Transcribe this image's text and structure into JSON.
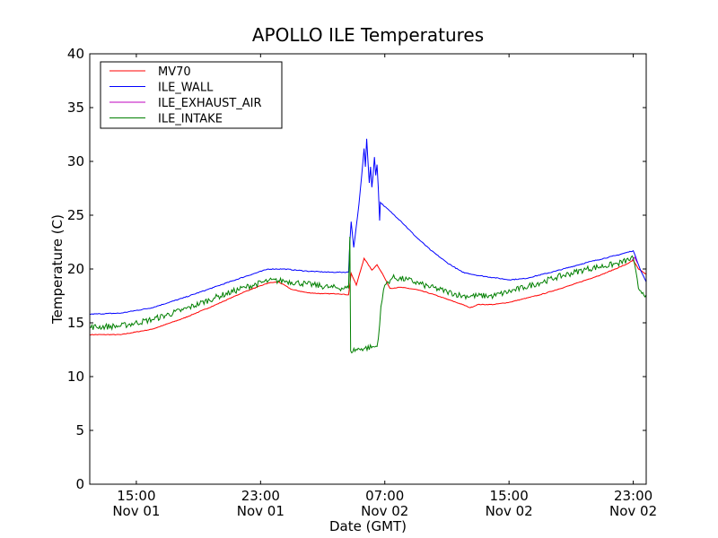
{
  "chart_data": {
    "type": "line",
    "title": "APOLLO ILE Temperatures",
    "xlabel": "Date (GMT)",
    "ylabel": "Temperature (C)",
    "x_unit": "date-time GMT",
    "xlim": [
      "2013-11-01T12:00",
      "2013-11-02T23:50"
    ],
    "ylim": [
      0,
      40
    ],
    "y_ticks": [
      0,
      5,
      10,
      15,
      20,
      25,
      30,
      35,
      40
    ],
    "x_ticks": [
      {
        "x": "2013-11-01T15:00",
        "line1": "15:00",
        "line2": "Nov 01"
      },
      {
        "x": "2013-11-01T23:00",
        "line1": "23:00",
        "line2": "Nov 01"
      },
      {
        "x": "2013-11-02T07:00",
        "line1": "07:00",
        "line2": "Nov 02"
      },
      {
        "x": "2013-11-02T15:00",
        "line1": "15:00",
        "line2": "Nov 02"
      },
      {
        "x": "2013-11-02T23:00",
        "line1": "23:00",
        "line2": "Nov 02"
      }
    ],
    "legend_position": "upper-left",
    "grid": false,
    "series": [
      {
        "name": "MV70",
        "color": "#ff0000",
        "noise": 0.03,
        "points": [
          [
            "2013-11-01T12:00",
            13.9
          ],
          [
            "2013-11-01T14:00",
            13.9
          ],
          [
            "2013-11-01T16:00",
            14.4
          ],
          [
            "2013-11-01T18:00",
            15.4
          ],
          [
            "2013-11-01T20:00",
            16.6
          ],
          [
            "2013-11-01T22:00",
            17.9
          ],
          [
            "2013-11-01T23:30",
            18.7
          ],
          [
            "2013-11-02T00:10",
            18.8
          ],
          [
            "2013-11-02T01:00",
            18.1
          ],
          [
            "2013-11-02T02:00",
            17.8
          ],
          [
            "2013-11-02T03:00",
            17.7
          ],
          [
            "2013-11-02T04:00",
            17.7
          ],
          [
            "2013-11-02T04:40",
            17.6
          ],
          [
            "2013-11-02T04:50",
            19.6
          ],
          [
            "2013-11-02T05:10",
            18.5
          ],
          [
            "2013-11-02T05:40",
            21.0
          ],
          [
            "2013-11-02T06:10",
            19.9
          ],
          [
            "2013-11-02T06:30",
            20.4
          ],
          [
            "2013-11-02T06:50",
            19.6
          ],
          [
            "2013-11-02T07:20",
            18.2
          ],
          [
            "2013-11-02T08:00",
            18.3
          ],
          [
            "2013-11-02T09:00",
            18.1
          ],
          [
            "2013-11-02T10:00",
            17.7
          ],
          [
            "2013-11-02T11:00",
            17.2
          ],
          [
            "2013-11-02T12:00",
            16.7
          ],
          [
            "2013-11-02T12:30",
            16.4
          ],
          [
            "2013-11-02T13:00",
            16.7
          ],
          [
            "2013-11-02T14:00",
            16.7
          ],
          [
            "2013-11-02T15:00",
            16.9
          ],
          [
            "2013-11-02T17:00",
            17.6
          ],
          [
            "2013-11-02T19:00",
            18.5
          ],
          [
            "2013-11-02T21:00",
            19.5
          ],
          [
            "2013-11-02T22:30",
            20.4
          ],
          [
            "2013-11-02T23:00",
            20.8
          ],
          [
            "2013-11-02T23:20",
            20.0
          ],
          [
            "2013-11-02T23:50",
            19.5
          ]
        ]
      },
      {
        "name": "ILE_WALL",
        "color": "#0000ff",
        "noise": 0.04,
        "points": [
          [
            "2013-11-01T12:00",
            15.8
          ],
          [
            "2013-11-01T14:00",
            15.9
          ],
          [
            "2013-11-01T16:00",
            16.4
          ],
          [
            "2013-11-01T18:00",
            17.3
          ],
          [
            "2013-11-01T20:00",
            18.3
          ],
          [
            "2013-11-01T22:00",
            19.3
          ],
          [
            "2013-11-01T23:30",
            20.0
          ],
          [
            "2013-11-02T00:30",
            20.0
          ],
          [
            "2013-11-02T02:00",
            19.8
          ],
          [
            "2013-11-02T03:30",
            19.7
          ],
          [
            "2013-11-02T04:40",
            19.7
          ],
          [
            "2013-11-02T04:45",
            22.5
          ],
          [
            "2013-11-02T04:50",
            24.4
          ],
          [
            "2013-11-02T05:00",
            22.0
          ],
          [
            "2013-11-02T05:10",
            24.0
          ],
          [
            "2013-11-02T05:20",
            26.0
          ],
          [
            "2013-11-02T05:30",
            28.5
          ],
          [
            "2013-11-02T05:40",
            31.2
          ],
          [
            "2013-11-02T05:45",
            29.5
          ],
          [
            "2013-11-02T05:50",
            32.1
          ],
          [
            "2013-11-02T05:55",
            30.0
          ],
          [
            "2013-11-02T06:00",
            28.0
          ],
          [
            "2013-11-02T06:05",
            29.5
          ],
          [
            "2013-11-02T06:10",
            27.6
          ],
          [
            "2013-11-02T06:15",
            28.8
          ],
          [
            "2013-11-02T06:20",
            30.4
          ],
          [
            "2013-11-02T06:25",
            28.7
          ],
          [
            "2013-11-02T06:30",
            29.7
          ],
          [
            "2013-11-02T06:35",
            27.5
          ],
          [
            "2013-11-02T06:40",
            24.5
          ],
          [
            "2013-11-02T06:43",
            26.2
          ],
          [
            "2013-11-02T07:00",
            25.8
          ],
          [
            "2013-11-02T08:00",
            24.5
          ],
          [
            "2013-11-02T09:00",
            23.0
          ],
          [
            "2013-11-02T10:00",
            21.7
          ],
          [
            "2013-11-02T11:00",
            20.6
          ],
          [
            "2013-11-02T12:00",
            19.7
          ],
          [
            "2013-11-02T13:00",
            19.4
          ],
          [
            "2013-11-02T14:00",
            19.2
          ],
          [
            "2013-11-02T15:00",
            19.0
          ],
          [
            "2013-11-02T16:00",
            19.1
          ],
          [
            "2013-11-02T18:00",
            19.8
          ],
          [
            "2013-11-02T20:00",
            20.6
          ],
          [
            "2013-11-02T22:00",
            21.3
          ],
          [
            "2013-11-02T23:00",
            21.7
          ],
          [
            "2013-11-02T23:30",
            19.8
          ],
          [
            "2013-11-02T23:50",
            18.8
          ]
        ]
      },
      {
        "name": "ILE_EXHAUST_AIR",
        "color": "#bf00bf",
        "noise": 0,
        "points": [
          [
            "2013-11-02T22:55",
            20.8
          ],
          [
            "2013-11-02T23:05",
            21.1
          ],
          [
            "2013-11-02T23:15",
            20.6
          ]
        ]
      },
      {
        "name": "ILE_INTAKE",
        "color": "#007f00",
        "noise": 0.28,
        "points": [
          [
            "2013-11-01T12:00",
            14.6
          ],
          [
            "2013-11-01T14:00",
            14.7
          ],
          [
            "2013-11-01T16:00",
            15.3
          ],
          [
            "2013-11-01T18:00",
            16.2
          ],
          [
            "2013-11-01T20:00",
            17.3
          ],
          [
            "2013-11-01T22:00",
            18.3
          ],
          [
            "2013-11-01T23:30",
            18.9
          ],
          [
            "2013-11-02T00:30",
            18.9
          ],
          [
            "2013-11-02T02:00",
            18.6
          ],
          [
            "2013-11-02T03:30",
            18.3
          ],
          [
            "2013-11-02T04:40",
            18.2
          ],
          [
            "2013-11-02T04:45",
            23.0
          ],
          [
            "2013-11-02T04:48",
            12.4
          ],
          [
            "2013-11-02T05:30",
            12.6
          ],
          [
            "2013-11-02T06:30",
            12.8
          ],
          [
            "2013-11-02T06:40",
            14.8
          ],
          [
            "2013-11-02T06:45",
            16.5
          ],
          [
            "2013-11-02T07:00",
            18.5
          ],
          [
            "2013-11-02T07:30",
            19.2
          ],
          [
            "2013-11-02T08:30",
            19.0
          ],
          [
            "2013-11-02T09:30",
            18.5
          ],
          [
            "2013-11-02T11:00",
            17.9
          ],
          [
            "2013-11-02T12:00",
            17.5
          ],
          [
            "2013-11-02T14:00",
            17.5
          ],
          [
            "2013-11-02T16:00",
            18.3
          ],
          [
            "2013-11-02T18:00",
            19.2
          ],
          [
            "2013-11-02T20:00",
            20.0
          ],
          [
            "2013-11-02T22:00",
            20.5
          ],
          [
            "2013-11-02T23:00",
            21.0
          ],
          [
            "2013-11-02T23:20",
            18.2
          ],
          [
            "2013-11-02T23:50",
            17.6
          ]
        ]
      }
    ]
  }
}
